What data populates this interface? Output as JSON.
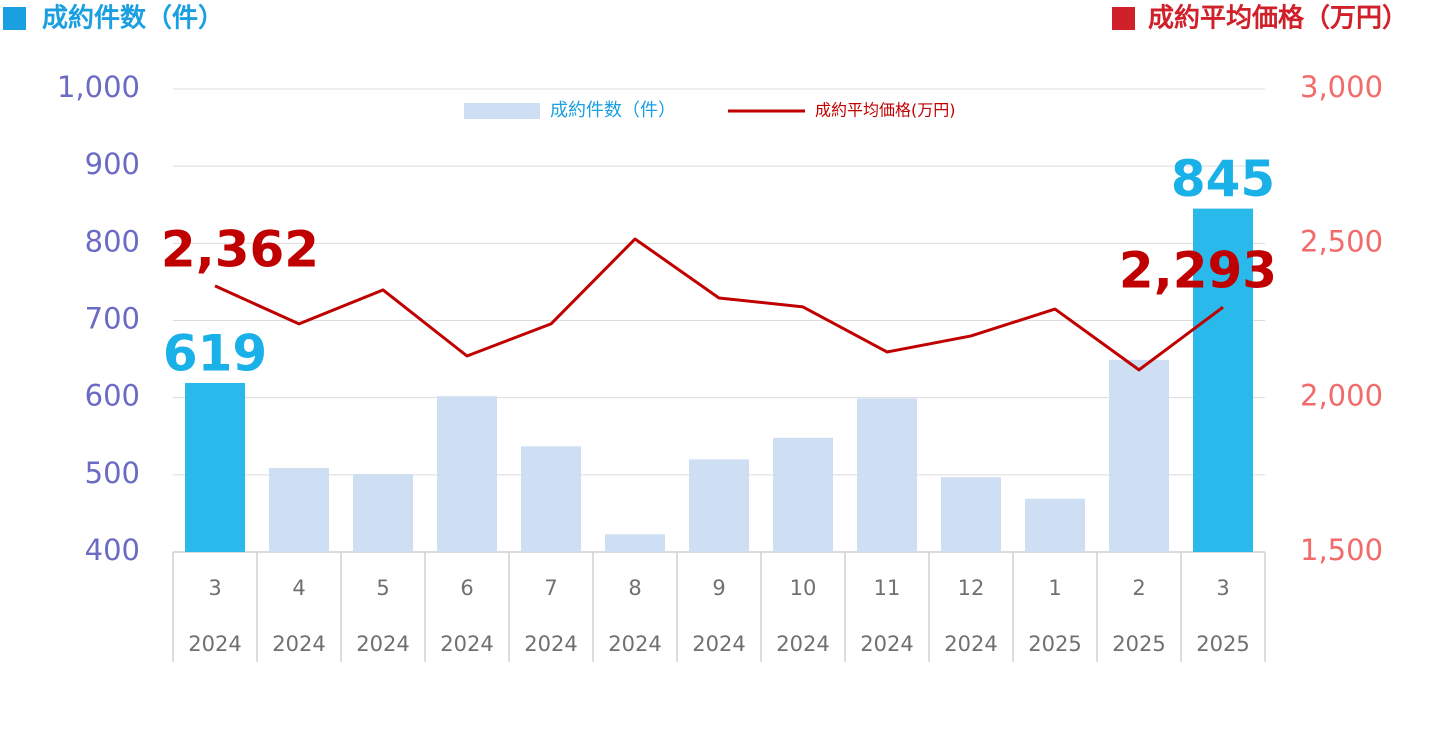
{
  "chart_data": {
    "type": "bar-line",
    "left_title": "成約件数（件）",
    "left_title_color": "#1a9fe0",
    "right_title": "成約平均価格（万円）",
    "right_title_color": "#d0202a",
    "categories": [
      [
        "3",
        "2024"
      ],
      [
        "4",
        "2024"
      ],
      [
        "5",
        "2024"
      ],
      [
        "6",
        "2024"
      ],
      [
        "7",
        "2024"
      ],
      [
        "8",
        "2024"
      ],
      [
        "9",
        "2024"
      ],
      [
        "10",
        "2024"
      ],
      [
        "11",
        "2024"
      ],
      [
        "12",
        "2024"
      ],
      [
        "1",
        "2025"
      ],
      [
        "2",
        "2025"
      ],
      [
        "3",
        "2025"
      ]
    ],
    "series": [
      {
        "name": "成約件数（件）",
        "type": "bar",
        "color": "#cfdff3",
        "label_color": "#1ab0e8",
        "colors": [
          "#29b9ea",
          "#cfdff3",
          "#cfdff3",
          "#cfdff3",
          "#cfdff3",
          "#cfdff3",
          "#cfdff3",
          "#cfdff3",
          "#cfdff3",
          "#cfdff3",
          "#cfdff3",
          "#cfdff3",
          "#29b9ea"
        ],
        "values": [
          619,
          509,
          501,
          602,
          537,
          423,
          520,
          548,
          599,
          497,
          469,
          649,
          845
        ],
        "value_labels": [
          "619",
          null,
          null,
          null,
          null,
          null,
          null,
          null,
          null,
          null,
          null,
          null,
          "845"
        ]
      },
      {
        "name": "成約平均価格(万円)",
        "type": "line",
        "axis": "y2",
        "color": "#c00000",
        "label_color": "#c00000",
        "values": [
          2362,
          2239,
          2349,
          2135,
          2239,
          2514,
          2323,
          2294,
          2148,
          2200,
          2287,
          2090,
          2293
        ],
        "value_labels": [
          "2,362",
          null,
          null,
          null,
          null,
          null,
          null,
          null,
          null,
          null,
          null,
          null,
          "2,293"
        ]
      }
    ],
    "ylim": [
      400,
      1000
    ],
    "yticks": [
      400,
      500,
      600,
      700,
      800,
      900,
      {
        "value": 1000,
        "label": "1,000"
      }
    ],
    "ytick_color": "#6b6bc4",
    "y2lim": [
      1500,
      3000
    ],
    "y2ticks": [
      {
        "value": 1500,
        "label": "1,500"
      },
      {
        "value": 2000,
        "label": "2,000"
      },
      {
        "value": 2500,
        "label": "2,500"
      },
      {
        "value": 3000,
        "label": "3,000"
      }
    ],
    "y2tick_color": "#f26b6b",
    "grid": true
  }
}
